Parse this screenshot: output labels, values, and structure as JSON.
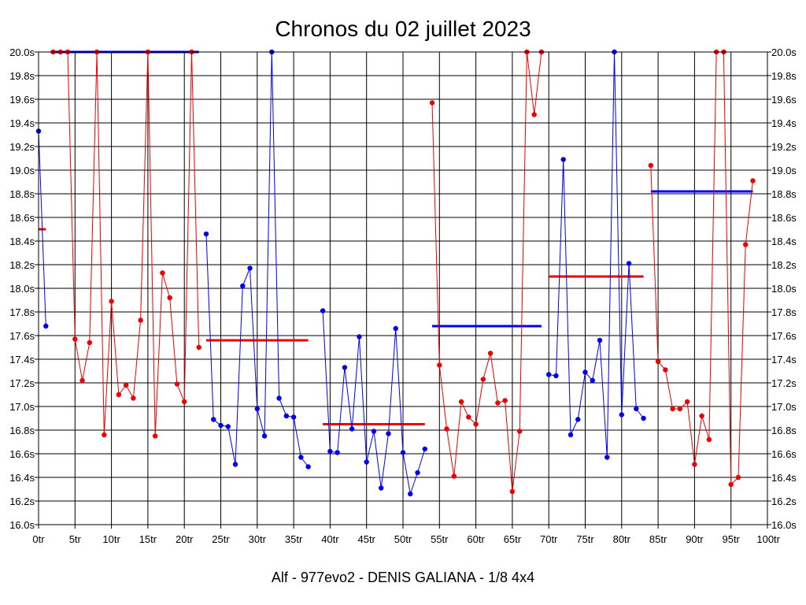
{
  "chart_data": {
    "type": "line",
    "title": "Chronos du 02 juillet 2023",
    "subtitle": "Alf - 977evo2 - DENIS GALIANA - 1/8 4x4",
    "xlabel": "",
    "ylabel": "",
    "xlim": [
      0,
      100
    ],
    "ylim": [
      16.0,
      20.0
    ],
    "grid": true,
    "x_ticks": [
      0,
      5,
      10,
      15,
      20,
      25,
      30,
      35,
      40,
      45,
      50,
      55,
      60,
      65,
      70,
      75,
      80,
      85,
      90,
      95,
      100
    ],
    "x_tick_labels": [
      "0tr",
      "5tr",
      "10tr",
      "15tr",
      "20tr",
      "25tr",
      "30tr",
      "35tr",
      "40tr",
      "45tr",
      "50tr",
      "55tr",
      "60tr",
      "65tr",
      "70tr",
      "75tr",
      "80tr",
      "85tr",
      "90tr",
      "95tr",
      "100tr"
    ],
    "y_ticks": [
      16.0,
      16.2,
      16.4,
      16.6,
      16.8,
      17.0,
      17.2,
      17.4,
      17.6,
      17.8,
      18.0,
      18.2,
      18.4,
      18.6,
      18.8,
      19.0,
      19.2,
      19.4,
      19.6,
      19.8,
      20.0
    ],
    "y_tick_labels": [
      "16.0s",
      "16.2s",
      "16.4s",
      "16.6s",
      "16.8s",
      "17.0s",
      "17.2s",
      "17.4s",
      "17.6s",
      "17.8s",
      "18.0s",
      "18.2s",
      "18.4s",
      "18.6s",
      "18.8s",
      "19.0s",
      "19.2s",
      "19.4s",
      "19.6s",
      "19.8s",
      "20.0s"
    ],
    "series": [
      {
        "color": "#0000ee",
        "x": [
          0,
          1
        ],
        "values": [
          19.33,
          17.68
        ],
        "mean": 18.5,
        "mean_color": "#ee0000",
        "mean_x": [
          0,
          1
        ]
      },
      {
        "color": "#ee0000",
        "x": [
          2,
          3,
          4,
          5,
          6,
          7,
          8,
          9,
          10,
          11,
          12,
          13,
          14,
          15,
          16,
          17,
          18,
          19,
          20,
          21,
          22
        ],
        "values": [
          20.0,
          20.0,
          20.0,
          17.57,
          17.22,
          17.54,
          20.0,
          16.76,
          17.89,
          17.1,
          17.18,
          17.07,
          17.73,
          20.0,
          16.75,
          18.13,
          17.92,
          17.19,
          17.04,
          20.0,
          17.5
        ],
        "mean": 20.0,
        "mean_color": "#0000ee",
        "mean_x": [
          2,
          22
        ]
      },
      {
        "color": "#0000ee",
        "x": [
          23,
          24,
          25,
          26,
          27,
          28,
          29,
          30,
          31,
          32,
          33,
          34,
          35,
          36,
          37
        ],
        "values": [
          18.46,
          16.89,
          16.84,
          16.83,
          16.51,
          18.02,
          18.17,
          16.98,
          16.75,
          20.0,
          17.07,
          16.92,
          16.91,
          16.57,
          16.49
        ],
        "mean": 17.56,
        "mean_color": "#ee0000",
        "mean_x": [
          23,
          37
        ]
      },
      {
        "color": "#0000ee",
        "x": [
          39,
          40,
          41,
          42,
          43,
          44,
          45,
          46,
          47,
          48,
          49,
          50,
          51,
          52,
          53
        ],
        "values": [
          17.81,
          16.62,
          16.61,
          17.33,
          16.81,
          17.59,
          16.53,
          16.79,
          16.31,
          16.77,
          17.66,
          16.61,
          16.26,
          16.44,
          16.64
        ],
        "mean": 16.85,
        "mean_color": "#ee0000",
        "mean_x": [
          39,
          53
        ]
      },
      {
        "color": "#ee0000",
        "x": [
          54,
          55,
          56,
          57,
          58,
          59,
          60,
          61,
          62,
          63,
          64,
          65,
          66,
          67,
          68,
          69
        ],
        "values": [
          19.57,
          17.35,
          16.81,
          16.41,
          17.04,
          16.91,
          16.85,
          17.23,
          17.45,
          17.03,
          17.05,
          16.28,
          16.79,
          20.0,
          19.47,
          20.0
        ],
        "mean": 17.68,
        "mean_color": "#0000ee",
        "mean_x": [
          54,
          69
        ]
      },
      {
        "color": "#0000ee",
        "x": [
          70,
          71,
          72,
          73,
          74,
          75,
          76,
          77,
          78,
          79,
          80,
          81,
          82,
          83
        ],
        "values": [
          17.27,
          17.26,
          19.09,
          16.76,
          16.89,
          17.29,
          17.22,
          17.56,
          16.57,
          20.0,
          16.93,
          18.21,
          16.98,
          16.9
        ],
        "mean": 18.1,
        "mean_color": "#ee0000",
        "mean_x": [
          70,
          83
        ]
      },
      {
        "color": "#ee0000",
        "x": [
          84,
          85,
          86,
          87,
          88,
          89,
          90,
          91,
          92,
          93,
          94,
          95,
          96,
          97,
          98
        ],
        "values": [
          19.04,
          17.38,
          17.31,
          16.98,
          16.98,
          17.04,
          16.51,
          16.92,
          16.72,
          20.0,
          20.0,
          16.34,
          16.4,
          18.37,
          18.91
        ],
        "mean": 18.82,
        "mean_color": "#0000ee",
        "mean_x": [
          84,
          98
        ]
      }
    ]
  }
}
